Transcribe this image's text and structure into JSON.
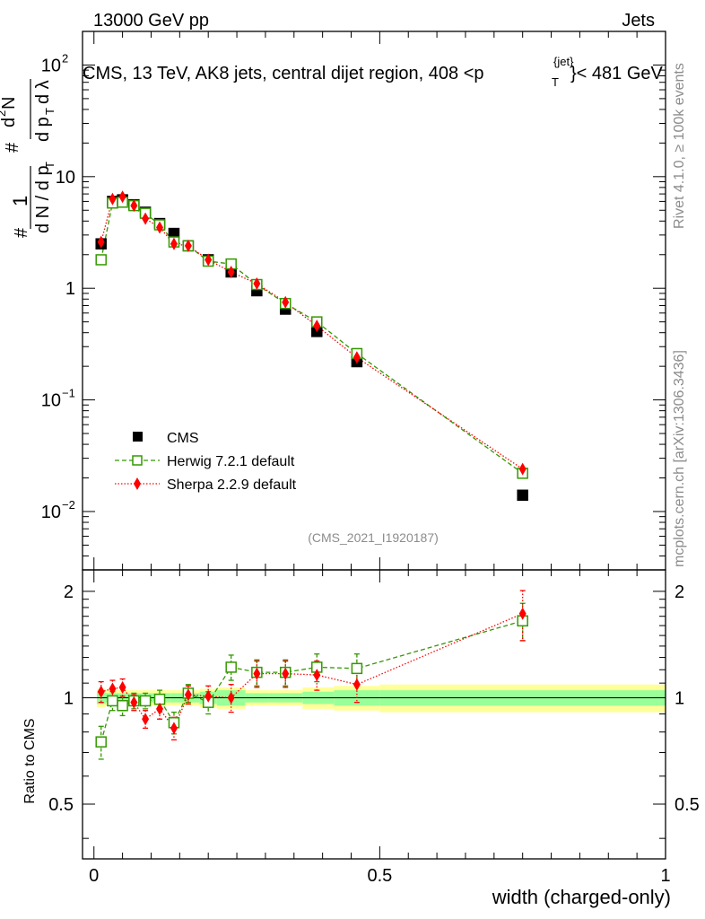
{
  "header": {
    "left": "13000 GeV pp",
    "right": "Jets"
  },
  "side": {
    "rivet": "Rivet 4.1.0, ≥ 100k events",
    "mcplots": "mcplots.cern.ch [arXiv:1306.3436]"
  },
  "colors": {
    "cms": "#000000",
    "herwig": "#339900",
    "sherpa": "#ff0000",
    "band_inner": "#99ff99",
    "band_outer": "#ffff99"
  },
  "chart_data": {
    "type": "scatter",
    "title": "CMS, 13 TeV, AK8 jets, central dijet region, 408 <p_T^{jet}< 481 GeV",
    "analysis_id": "(CMS_2021_I1920187)",
    "xlabel": "width (charged-only)",
    "ylabel_main": "1/(dN/dp_T) d²N/(dp_T dλ)",
    "ylabel_ratio": "Ratio to CMS",
    "xlim": [
      -0.02,
      1.0
    ],
    "ylim_main": [
      0.003,
      200
    ],
    "ylim_ratio": [
      0.35,
      2.3
    ],
    "x_ticks": [
      "0",
      "0.5",
      "1"
    ],
    "y_ticks_main": [
      "10^-2",
      "10^-1",
      "1",
      "10",
      "10^2"
    ],
    "y_ticks_ratio": [
      "0.5",
      "1",
      "2"
    ],
    "legend": {
      "position": "bottom-left",
      "entries": [
        "CMS",
        "Herwig 7.2.1 default",
        "Sherpa 2.2.9 default"
      ]
    },
    "x": [
      0.0125,
      0.0325,
      0.05,
      0.07,
      0.09,
      0.115,
      0.14,
      0.165,
      0.2,
      0.24,
      0.285,
      0.335,
      0.39,
      0.46,
      0.75
    ],
    "x_edges": [
      0.005,
      0.02,
      0.045,
      0.055,
      0.085,
      0.095,
      0.135,
      0.145,
      0.185,
      0.215,
      0.265,
      0.305,
      0.365,
      0.42,
      0.5,
      1.0
    ],
    "band_inner": [
      0.04,
      0.03,
      0.03,
      0.03,
      0.03,
      0.03,
      0.03,
      0.03,
      0.04,
      0.05,
      0.03,
      0.03,
      0.04,
      0.05,
      0.05
    ],
    "band_outer": [
      0.06,
      0.05,
      0.05,
      0.05,
      0.05,
      0.05,
      0.05,
      0.05,
      0.06,
      0.07,
      0.05,
      0.05,
      0.07,
      0.08,
      0.09
    ],
    "series": [
      {
        "name": "CMS",
        "marker": "filled-square",
        "values": [
          2.5,
          6.0,
          6.2,
          5.6,
          4.8,
          3.8,
          3.1,
          2.4,
          1.8,
          1.4,
          0.95,
          0.65,
          0.41,
          0.22,
          0.014
        ]
      },
      {
        "name": "Herwig 7.2.1 default",
        "marker": "open-square",
        "line": "dashed",
        "values": [
          1.8,
          5.8,
          5.9,
          5.5,
          4.7,
          3.7,
          2.6,
          2.4,
          1.75,
          1.65,
          1.08,
          0.73,
          0.5,
          0.26,
          0.022
        ],
        "ratio": [
          0.75,
          0.98,
          0.95,
          0.98,
          0.98,
          0.99,
          0.85,
          1.03,
          0.97,
          1.22,
          1.18,
          1.18,
          1.22,
          1.21,
          1.65
        ],
        "ratio_err": [
          0.08,
          0.06,
          0.06,
          0.05,
          0.05,
          0.06,
          0.06,
          0.06,
          0.07,
          0.1,
          0.1,
          0.1,
          0.11,
          0.12,
          0.2
        ]
      },
      {
        "name": "Sherpa 2.2.9 default",
        "marker": "filled-diamond",
        "line": "dotted",
        "values": [
          2.6,
          6.3,
          6.6,
          5.5,
          4.2,
          3.5,
          2.5,
          2.4,
          1.8,
          1.4,
          1.1,
          0.75,
          0.46,
          0.24,
          0.024
        ],
        "ratio": [
          1.04,
          1.06,
          1.07,
          0.97,
          0.87,
          0.93,
          0.82,
          1.02,
          1.01,
          1.0,
          1.17,
          1.17,
          1.16,
          1.09,
          1.73
        ],
        "ratio_err": [
          0.07,
          0.06,
          0.06,
          0.05,
          0.05,
          0.06,
          0.06,
          0.06,
          0.07,
          0.09,
          0.1,
          0.1,
          0.11,
          0.12,
          0.28
        ]
      }
    ]
  }
}
